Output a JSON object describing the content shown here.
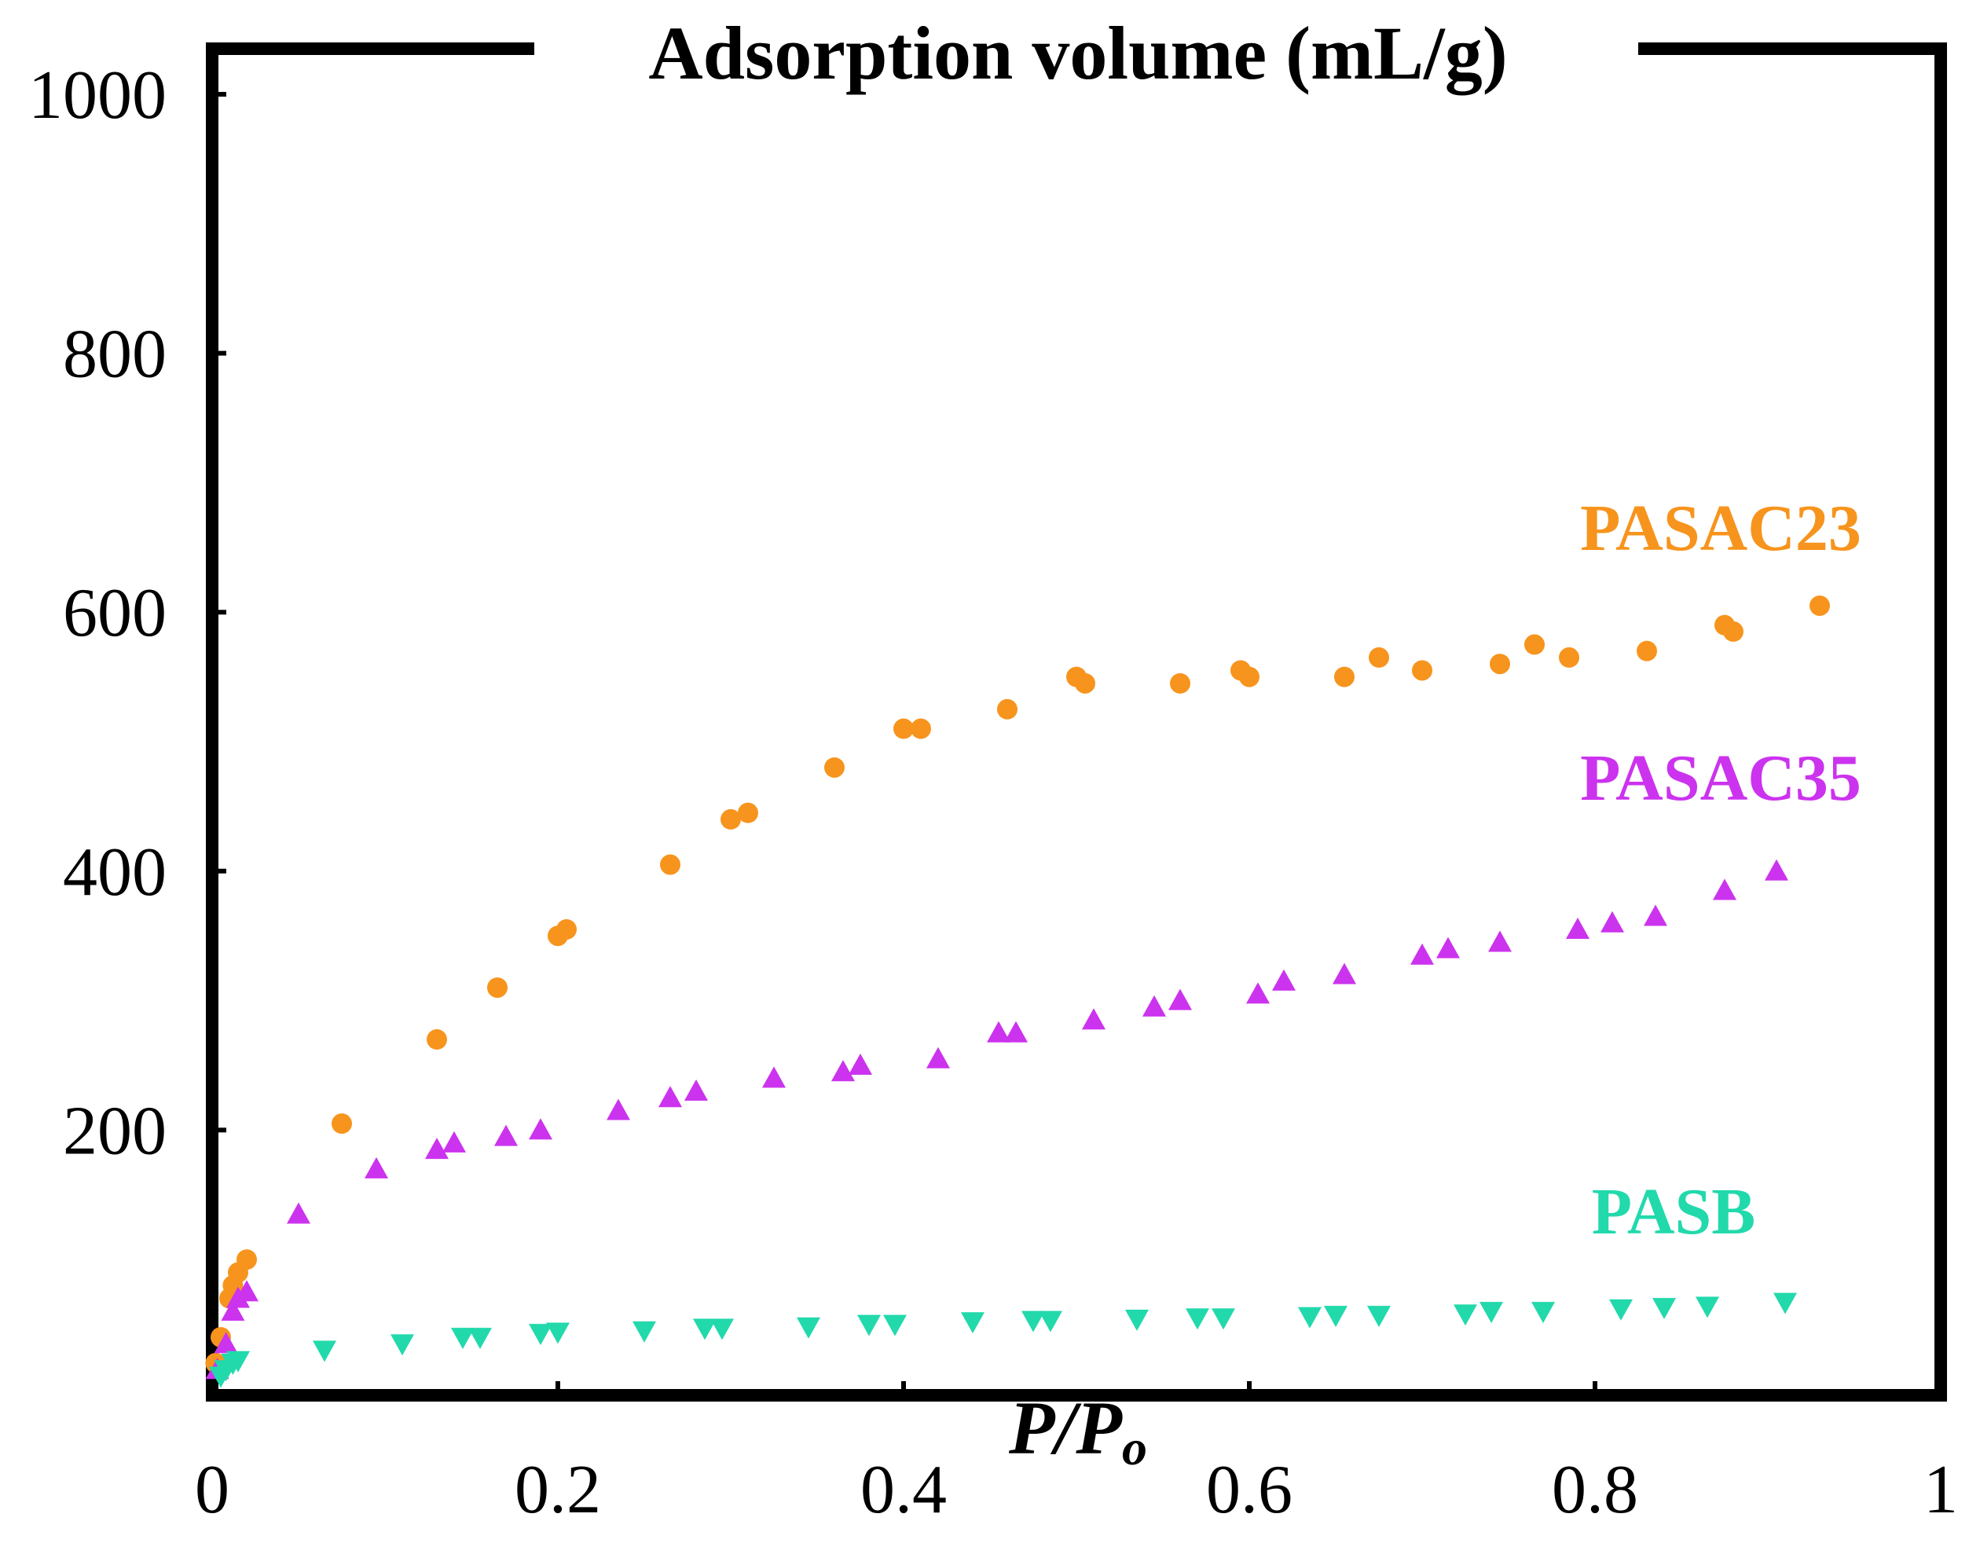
{
  "chart_data": {
    "type": "scatter",
    "title": "Adsorption volume (mL/g)",
    "xlabel": "P/P",
    "xlabel_subscript": "o",
    "ylabel": "",
    "xlim": [
      0,
      1
    ],
    "ylim": [
      0,
      1000
    ],
    "x_ticks": [
      0,
      0.2,
      0.4,
      0.6,
      0.8,
      1
    ],
    "x_tick_labels": [
      "0",
      "0.2",
      "0.4",
      "0.6",
      "0.8",
      "1"
    ],
    "y_ticks": [
      200,
      400,
      600,
      800,
      1000
    ],
    "y_tick_labels": [
      "200",
      "400",
      "600",
      "800",
      "1000"
    ],
    "grid": false,
    "legend": "inline labels at right",
    "series": [
      {
        "name": "PASAC23",
        "color": "#F7941D",
        "marker": "circle",
        "x": [
          0.002,
          0.005,
          0.01,
          0.012,
          0.015,
          0.02,
          0.075,
          0.13,
          0.165,
          0.2,
          0.205,
          0.265,
          0.3,
          0.31,
          0.36,
          0.4,
          0.41,
          0.46,
          0.5,
          0.505,
          0.56,
          0.595,
          0.6,
          0.655,
          0.675,
          0.7,
          0.745,
          0.765,
          0.785,
          0.83,
          0.875,
          0.88,
          0.93
        ],
        "y": [
          20,
          40,
          70,
          80,
          90,
          100,
          205,
          270,
          310,
          350,
          355,
          405,
          440,
          445,
          480,
          510,
          510,
          525,
          550,
          545,
          545,
          555,
          550,
          550,
          565,
          555,
          560,
          575,
          565,
          570,
          590,
          585,
          605
        ]
      },
      {
        "name": "PASAC35",
        "color": "#CC33EE",
        "marker": "triangle",
        "x": [
          0.003,
          0.008,
          0.012,
          0.015,
          0.02,
          0.05,
          0.095,
          0.13,
          0.14,
          0.17,
          0.19,
          0.235,
          0.265,
          0.28,
          0.325,
          0.365,
          0.375,
          0.42,
          0.455,
          0.465,
          0.51,
          0.545,
          0.56,
          0.605,
          0.62,
          0.655,
          0.7,
          0.715,
          0.745,
          0.79,
          0.81,
          0.835,
          0.875,
          0.905
        ],
        "y": [
          15,
          35,
          60,
          70,
          75,
          135,
          170,
          185,
          190,
          195,
          200,
          215,
          225,
          230,
          240,
          245,
          250,
          255,
          275,
          275,
          285,
          295,
          300,
          305,
          315,
          320,
          335,
          340,
          345,
          355,
          360,
          365,
          385,
          400
        ]
      },
      {
        "name": "PASB",
        "color": "#22D9AC",
        "marker": "triangle-down",
        "x": [
          0.005,
          0.008,
          0.012,
          0.015,
          0.065,
          0.11,
          0.145,
          0.155,
          0.19,
          0.2,
          0.25,
          0.285,
          0.295,
          0.345,
          0.38,
          0.395,
          0.44,
          0.475,
          0.485,
          0.535,
          0.57,
          0.585,
          0.635,
          0.65,
          0.675,
          0.725,
          0.74,
          0.77,
          0.815,
          0.84,
          0.865,
          0.91
        ],
        "y": [
          10,
          15,
          20,
          22,
          30,
          35,
          40,
          40,
          43,
          44,
          45,
          47,
          47,
          48,
          50,
          50,
          52,
          53,
          53,
          54,
          55,
          55,
          56,
          57,
          57,
          58,
          60,
          60,
          62,
          63,
          64,
          67
        ]
      }
    ]
  }
}
